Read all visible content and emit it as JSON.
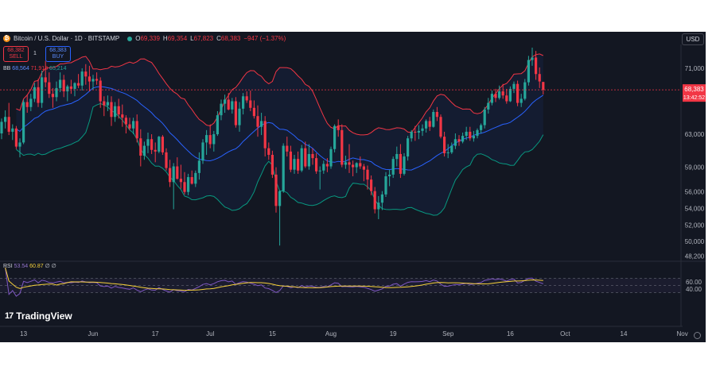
{
  "header": {
    "symbol": "Bitcoin / U.S. Dollar · 1D · BITSTAMP",
    "ohlc": [
      {
        "k": "O",
        "v": "69,339"
      },
      {
        "k": "H",
        "v": "69,354"
      },
      {
        "k": "L",
        "v": "67,823"
      },
      {
        "k": "C",
        "v": "68,383"
      },
      {
        "k": "",
        "v": "−947 (−1.37%)"
      }
    ],
    "sell": {
      "price": "68,382",
      "label": "SELL"
    },
    "buy": {
      "price": "68,383",
      "label": "BUY"
    },
    "spread": "1",
    "currency": "USD"
  },
  "bb_legend": {
    "name": "BB",
    "basis": "68,564",
    "upper": "71,913",
    "lower": "65,214"
  },
  "rsi_legend": {
    "name": "RSI",
    "rsi": "53.54",
    "ma": "60.87",
    "extra1": "∅",
    "extra2": "∅"
  },
  "price_tag": {
    "price": "68,383",
    "countdown": "13:42:52"
  },
  "brand": "TradingView",
  "chart_data": {
    "type": "candlestick",
    "title": "Bitcoin / U.S. Dollar · 1D · BITSTAMP",
    "y_ticks": [
      71000,
      63000,
      59000,
      56000,
      54000,
      52000,
      50000,
      48200
    ],
    "y_tick_labels": [
      "71,000",
      "63,000",
      "59,000",
      "56,000",
      "54,000",
      "52,000",
      "50,000",
      "48,200"
    ],
    "ylim": [
      47500,
      73500
    ],
    "x_ticks": [
      "13",
      "Jun",
      "17",
      "Jul",
      "15",
      "Aug",
      "19",
      "Sep",
      "16",
      "Oct",
      "14",
      "Nov"
    ],
    "x_tick_index": [
      6,
      25,
      42,
      57,
      74,
      90,
      107,
      122,
      139,
      154,
      170,
      186
    ],
    "candles": [
      [
        63100,
        64900,
        62400,
        64500
      ],
      [
        64500,
        65900,
        63700,
        65100
      ],
      [
        65100,
        66800,
        62900,
        63300
      ],
      [
        63300,
        64200,
        62300,
        63700
      ],
      [
        63700,
        64000,
        61200,
        61500
      ],
      [
        61500,
        62500,
        60200,
        62000
      ],
      [
        62000,
        67200,
        61800,
        66900
      ],
      [
        66900,
        67800,
        65600,
        66300
      ],
      [
        66300,
        67900,
        65800,
        67300
      ],
      [
        67300,
        69200,
        66900,
        68700
      ],
      [
        68700,
        69700,
        66300,
        66800
      ],
      [
        66800,
        70700,
        66200,
        69900
      ],
      [
        69900,
        71900,
        68700,
        69300
      ],
      [
        69300,
        70500,
        67400,
        67900
      ],
      [
        67900,
        68600,
        66200,
        67500
      ],
      [
        67500,
        69400,
        67000,
        68600
      ],
      [
        68600,
        70500,
        68100,
        69600
      ],
      [
        69600,
        70200,
        67500,
        68200
      ],
      [
        68200,
        69000,
        67000,
        68800
      ],
      [
        68800,
        69600,
        67900,
        68500
      ],
      [
        68500,
        69300,
        67600,
        69200
      ],
      [
        69200,
        70300,
        68600,
        68900
      ],
      [
        68900,
        71000,
        68300,
        70600
      ],
      [
        70600,
        71500,
        69000,
        70000
      ],
      [
        70000,
        71300,
        68200,
        69400
      ],
      [
        69400,
        70200,
        68400,
        69700
      ],
      [
        69700,
        70500,
        69000,
        69500
      ],
      [
        69500,
        69900,
        66200,
        67000
      ],
      [
        67000,
        67600,
        65200,
        66500
      ],
      [
        66500,
        67700,
        65800,
        66900
      ],
      [
        66900,
        67600,
        64000,
        65100
      ],
      [
        65100,
        66900,
        64500,
        66400
      ],
      [
        66400,
        67300,
        64900,
        65400
      ],
      [
        65400,
        66600,
        63900,
        65000
      ],
      [
        65000,
        65300,
        63100,
        64200
      ],
      [
        64200,
        65000,
        63500,
        63700
      ],
      [
        63700,
        65000,
        63000,
        64600
      ],
      [
        64600,
        65400,
        62000,
        62500
      ],
      [
        62500,
        63600,
        59100,
        60400
      ],
      [
        60400,
        62100,
        59900,
        61600
      ],
      [
        61600,
        63200,
        60700,
        62400
      ],
      [
        62400,
        63000,
        60600,
        61100
      ],
      [
        61100,
        62000,
        59600,
        60900
      ],
      [
        60900,
        62800,
        60700,
        62700
      ],
      [
        62700,
        62900,
        60500,
        60800
      ],
      [
        60800,
        61300,
        58600,
        58900
      ],
      [
        58900,
        59900,
        56600,
        57200
      ],
      [
        57200,
        59500,
        53900,
        59100
      ],
      [
        59100,
        60200,
        57500,
        57600
      ],
      [
        57600,
        59300,
        56400,
        57200
      ],
      [
        57200,
        58400,
        55700,
        56000
      ],
      [
        56000,
        58200,
        55600,
        57800
      ],
      [
        57800,
        58600,
        56900,
        57000
      ],
      [
        57000,
        58600,
        56600,
        58300
      ],
      [
        58300,
        60800,
        57500,
        59800
      ],
      [
        59800,
        62400,
        59400,
        62000
      ],
      [
        62000,
        63500,
        60500,
        62900
      ],
      [
        62900,
        64200,
        61300,
        61800
      ],
      [
        61800,
        63400,
        60900,
        63000
      ],
      [
        63000,
        65800,
        62800,
        65300
      ],
      [
        65300,
        67200,
        64700,
        66700
      ],
      [
        66700,
        67800,
        65600,
        67200
      ],
      [
        67200,
        68000,
        65900,
        66000
      ],
      [
        66000,
        67400,
        65500,
        67000
      ],
      [
        67000,
        67500,
        63800,
        64100
      ],
      [
        64100,
        66900,
        63300,
        66100
      ],
      [
        66100,
        68000,
        65400,
        67600
      ],
      [
        67600,
        68200,
        66800,
        67100
      ],
      [
        67100,
        68300,
        65800,
        66200
      ],
      [
        66200,
        67100,
        64900,
        65200
      ],
      [
        65200,
        66500,
        62700,
        63900
      ],
      [
        63900,
        65600,
        62900,
        64600
      ],
      [
        64600,
        65200,
        60300,
        61300
      ],
      [
        61300,
        62000,
        59900,
        60500
      ],
      [
        60500,
        61000,
        57700,
        58100
      ],
      [
        58100,
        59000,
        53500,
        54300
      ],
      [
        54300,
        56200,
        49500,
        56100
      ],
      [
        56100,
        61900,
        55900,
        61600
      ],
      [
        61600,
        62700,
        60300,
        60900
      ],
      [
        60900,
        61600,
        58400,
        58700
      ],
      [
        58700,
        60500,
        58200,
        60000
      ],
      [
        60000,
        60900,
        58200,
        58600
      ],
      [
        58600,
        61700,
        58400,
        61300
      ],
      [
        61300,
        62100,
        58900,
        59100
      ],
      [
        59100,
        61800,
        58700,
        60600
      ],
      [
        60600,
        61300,
        59300,
        60100
      ],
      [
        60100,
        60700,
        58200,
        58500
      ],
      [
        58500,
        59100,
        56300,
        58600
      ],
      [
        58600,
        59800,
        58200,
        59400
      ],
      [
        59400,
        60100,
        58400,
        59100
      ],
      [
        59100,
        61500,
        58800,
        61200
      ],
      [
        61200,
        64200,
        60800,
        64000
      ],
      [
        64000,
        64800,
        62700,
        63500
      ],
      [
        63500,
        64200,
        59000,
        59300
      ],
      [
        59300,
        60400,
        58800,
        59600
      ],
      [
        59600,
        61800,
        58300,
        59300
      ],
      [
        59300,
        59800,
        57900,
        59000
      ],
      [
        59000,
        59600,
        58300,
        59500
      ],
      [
        59500,
        60300,
        58800,
        59100
      ],
      [
        59100,
        59400,
        57300,
        58700
      ],
      [
        58700,
        59200,
        56300,
        57500
      ],
      [
        57500,
        58000,
        55600,
        56100
      ],
      [
        56100,
        56600,
        53400,
        53900
      ],
      [
        53900,
        55500,
        52700,
        54700
      ],
      [
        54700,
        56100,
        53800,
        55700
      ],
      [
        55700,
        58400,
        55400,
        57900
      ],
      [
        57900,
        58700,
        56700,
        58100
      ],
      [
        58100,
        60300,
        57700,
        60000
      ],
      [
        60000,
        61500,
        59100,
        60600
      ],
      [
        60600,
        61800,
        57700,
        58200
      ],
      [
        58200,
        60700,
        58000,
        60300
      ],
      [
        60300,
        62800,
        59800,
        62500
      ],
      [
        62500,
        63500,
        62100,
        63300
      ],
      [
        63300,
        64000,
        62200,
        63200
      ],
      [
        63200,
        64100,
        62400,
        63400
      ],
      [
        63400,
        64200,
        62800,
        63700
      ],
      [
        63700,
        64800,
        63200,
        64600
      ],
      [
        64600,
        65100,
        63400,
        63900
      ],
      [
        63900,
        66000,
        63800,
        65700
      ],
      [
        65700,
        66300,
        64600,
        65100
      ],
      [
        65100,
        65400,
        62500,
        62700
      ],
      [
        62700,
        63300,
        60300,
        60700
      ],
      [
        60700,
        61800,
        60100,
        60800
      ],
      [
        60800,
        62000,
        60600,
        61600
      ],
      [
        61600,
        63100,
        61200,
        62400
      ],
      [
        62400,
        62900,
        61600,
        62100
      ],
      [
        62100,
        63200,
        61900,
        62800
      ],
      [
        62800,
        63900,
        62300,
        63300
      ],
      [
        63300,
        63900,
        62200,
        62500
      ],
      [
        62500,
        63400,
        62100,
        62800
      ],
      [
        62800,
        63700,
        62500,
        63500
      ],
      [
        63500,
        64300,
        63100,
        64100
      ],
      [
        64100,
        66300,
        63700,
        66000
      ],
      [
        66000,
        67400,
        65500,
        66800
      ],
      [
        66800,
        68300,
        66500,
        67900
      ],
      [
        67900,
        68500,
        66900,
        67400
      ],
      [
        67400,
        68900,
        67200,
        68200
      ],
      [
        68200,
        69100,
        67300,
        67700
      ],
      [
        67700,
        68500,
        66700,
        67000
      ],
      [
        67000,
        68800,
        66900,
        68500
      ],
      [
        68500,
        69400,
        68000,
        69100
      ],
      [
        69100,
        69500,
        66400,
        66800
      ],
      [
        66800,
        67900,
        66300,
        67300
      ],
      [
        67300,
        69700,
        67100,
        69300
      ],
      [
        69300,
        72500,
        68900,
        72000
      ],
      [
        72000,
        73500,
        71300,
        72300
      ],
      [
        72300,
        73100,
        69600,
        70300
      ],
      [
        70300,
        71100,
        68600,
        69400
      ],
      [
        69339,
        69354,
        67823,
        68383
      ]
    ],
    "bollinger": {
      "period": 20,
      "stddev": 2,
      "basis": "68,564",
      "upper": "71,913",
      "lower": "65,214"
    },
    "rsi": {
      "period": 14,
      "ma_period": 14,
      "last": 53.54,
      "ma_last": 60.87,
      "y_ticks": [
        60,
        40
      ],
      "band": [
        30,
        70
      ]
    },
    "grid": false,
    "colors": {
      "up": "#26a69a",
      "down": "#f23645",
      "bb_basis": "#2962ff",
      "bb_upper": "#f23645",
      "bb_lower": "#089981",
      "rsi": "#7e57c2",
      "rsi_ma": "#f7d23a",
      "background": "#131722"
    }
  }
}
